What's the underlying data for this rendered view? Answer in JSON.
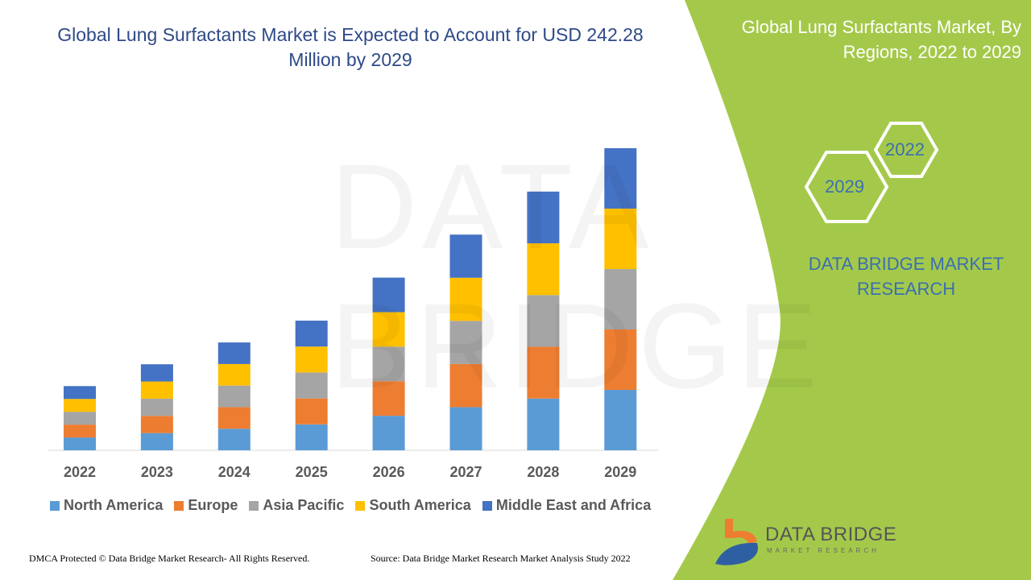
{
  "title": "Global Lung Surfactants Market is Expected to Account for USD 242.28 Million by 2029",
  "side_panel": {
    "title": "Global Lung Surfactants Market, By Regions, 2022 to 2029",
    "hex_start": "2022",
    "hex_end": "2029",
    "brand": "DATA BRIDGE MARKET RESEARCH",
    "logo_text": "DATA BRIDGE",
    "logo_sub": "MARKET RESEARCH",
    "green": "#a4c94a"
  },
  "footer": {
    "left": "DMCA Protected © Data Bridge Market Research- All Rights Reserved.",
    "right": "Source: Data Bridge Market Research Market Analysis Study 2022"
  },
  "chart_data": {
    "type": "bar",
    "stacked": true,
    "title": "Global Lung Surfactants Market is Expected to Account for USD 242.28 Million by 2029",
    "unit": "USD Million",
    "categories": [
      "2022",
      "2023",
      "2024",
      "2025",
      "2026",
      "2027",
      "2028",
      "2029"
    ],
    "series": [
      {
        "name": "North America",
        "color": "#5b9bd5",
        "values": [
          10.3,
          13.8,
          17.3,
          20.8,
          27.7,
          34.6,
          41.5,
          48.46
        ]
      },
      {
        "name": "Europe",
        "color": "#ed7d31",
        "values": [
          10.3,
          13.8,
          17.3,
          20.8,
          27.7,
          34.6,
          41.5,
          48.46
        ]
      },
      {
        "name": "Asia Pacific",
        "color": "#a5a5a5",
        "values": [
          10.3,
          13.8,
          17.3,
          20.8,
          27.7,
          34.6,
          41.5,
          48.46
        ]
      },
      {
        "name": "South America",
        "color": "#ffc000",
        "values": [
          10.3,
          13.8,
          17.3,
          20.8,
          27.7,
          34.6,
          41.5,
          48.46
        ]
      },
      {
        "name": "Middle East and Africa",
        "color": "#4472c4",
        "values": [
          10.3,
          13.8,
          17.3,
          20.8,
          27.7,
          34.6,
          41.5,
          48.46
        ]
      }
    ],
    "legend_position": "bottom",
    "grid": false,
    "y_axis_shown": false
  }
}
